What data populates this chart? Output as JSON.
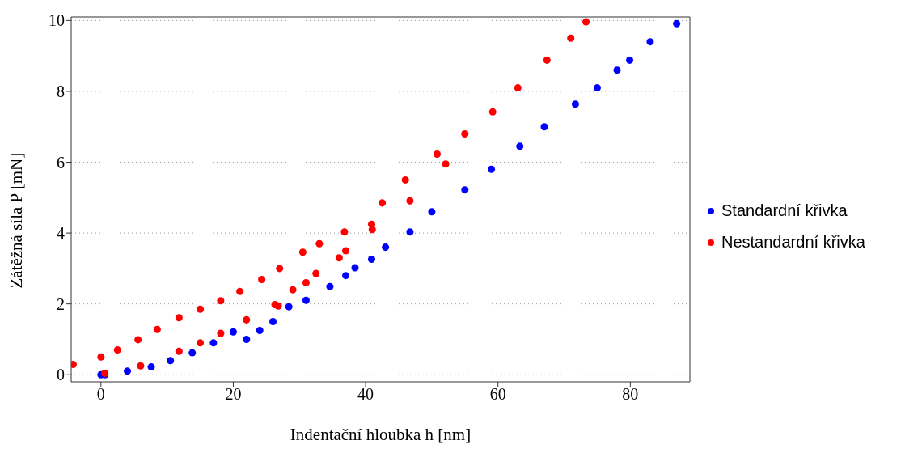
{
  "chart_data": {
    "type": "scatter",
    "xlabel": "Indentační hloubka h  [nm]",
    "ylabel": "Zátěžná síla P  [mN]",
    "xlim": [
      -4.5,
      89
    ],
    "xticks": [
      0,
      20,
      40,
      60,
      80
    ],
    "ylim": [
      -0.2,
      10.1
    ],
    "yticks": [
      0,
      2,
      4,
      6,
      8,
      10
    ],
    "grid": "y",
    "legend": "right",
    "marker": "circle",
    "series": [
      {
        "name": "Standardní křivka",
        "color": "#0000ff",
        "x": [
          0,
          0.6,
          4,
          7.6,
          10.5,
          13.8,
          17,
          20,
          22,
          24,
          26,
          28.4,
          31,
          34.6,
          37,
          38.4,
          40.9,
          43,
          46.7,
          50,
          55,
          59,
          63.3,
          67,
          71.7,
          75,
          78,
          79.9,
          83,
          87
        ],
        "values": [
          0,
          0,
          0.1,
          0.22,
          0.4,
          0.62,
          0.9,
          1.21,
          1.0,
          1.25,
          1.5,
          1.92,
          2.1,
          2.49,
          2.8,
          3.02,
          3.26,
          3.6,
          4.03,
          4.6,
          5.22,
          5.8,
          6.45,
          7.0,
          7.64,
          8.1,
          8.6,
          8.88,
          9.4,
          9.91
        ]
      },
      {
        "name": "Nestandardní křivka",
        "color": "#ff0000",
        "x": [
          -4.2,
          0,
          2.5,
          5.6,
          8.5,
          11.8,
          15,
          18.1,
          21,
          24.3,
          27,
          30.5,
          33,
          36.8,
          0.6,
          6,
          11.8,
          15,
          18.1,
          22,
          26.3,
          29,
          32.5,
          37,
          40.9,
          42.5,
          46,
          50.8,
          55,
          59.2,
          63,
          67.4,
          71,
          73.3,
          26.8,
          31,
          36,
          41,
          46.7,
          52.1
        ],
        "values": [
          0.29,
          0.5,
          0.7,
          0.99,
          1.28,
          1.61,
          1.85,
          2.09,
          2.35,
          2.69,
          3.0,
          3.46,
          3.7,
          4.03,
          0.04,
          0.25,
          0.66,
          0.9,
          1.17,
          1.55,
          1.98,
          2.4,
          2.86,
          3.5,
          4.25,
          4.85,
          5.5,
          6.23,
          6.8,
          7.42,
          8.1,
          8.88,
          9.5,
          9.96,
          1.94,
          2.6,
          3.3,
          4.1,
          4.91,
          5.95
        ]
      }
    ]
  }
}
